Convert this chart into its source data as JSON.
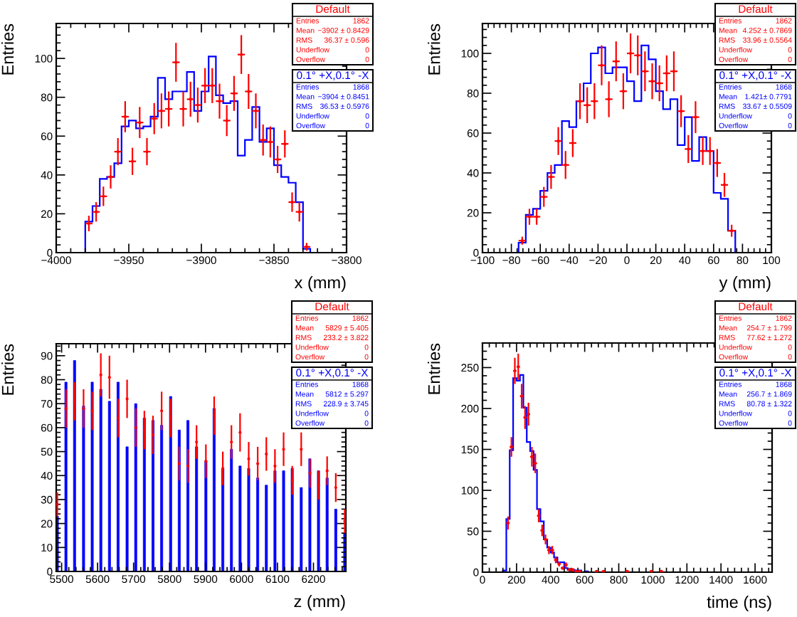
{
  "chart_data": [
    {
      "type": "histogram",
      "xlabel": "x (mm)",
      "ylabel": "Entries",
      "legend": "top right",
      "bins": [
        -4000,
        -3995,
        -3990,
        -3985,
        -3980,
        -3975,
        -3970,
        -3965,
        -3960,
        -3955,
        -3950,
        -3945,
        -3940,
        -3935,
        -3930,
        -3925,
        -3920,
        -3915,
        -3910,
        -3905,
        -3900,
        -3895,
        -3890,
        -3885,
        -3880,
        -3875,
        -3870,
        -3865,
        -3860,
        -3855,
        -3850,
        -3845,
        -3840,
        -3835,
        -3830,
        -3825,
        -3820,
        -3815,
        -3810,
        -3805,
        -3800
      ],
      "xlim": [
        -4000,
        -3800
      ],
      "ylim": [
        0,
        118
      ],
      "xticks": [
        {
          "value": -4000,
          "label": "−4000"
        },
        {
          "value": -3950,
          "label": "−3950"
        },
        {
          "value": -3900,
          "label": "−3900"
        },
        {
          "value": -3850,
          "label": "−3850"
        },
        {
          "value": -3800,
          "label": "−3800"
        }
      ],
      "yticks": [
        0,
        20,
        40,
        60,
        80,
        100
      ],
      "series": [
        {
          "name": "Default",
          "color": "#ff0000",
          "type": "scatter",
          "x": [
            -3977.5,
            -3972.5,
            -3967.5,
            -3962.5,
            -3957.5,
            -3952.5,
            -3947.5,
            -3942.5,
            -3937.5,
            -3932.5,
            -3927.5,
            -3922.5,
            -3917.5,
            -3912.5,
            -3907.5,
            -3902.5,
            -3897.5,
            -3892.5,
            -3887.5,
            -3882.5,
            -3877.5,
            -3872.5,
            -3867.5,
            -3862.5,
            -3857.5,
            -3852.5,
            -3847.5,
            -3842.5,
            -3837.5,
            -3832.5,
            -3827.5
          ],
          "values": [
            15,
            21,
            29,
            39,
            52,
            70,
            47,
            67,
            52,
            69,
            73,
            74,
            98,
            74,
            79,
            76,
            86,
            86,
            78,
            68,
            82,
            102,
            83,
            73,
            58,
            57,
            48,
            56,
            26,
            21,
            3
          ],
          "errors": [
            4,
            5,
            5,
            6,
            7,
            8,
            7,
            8,
            7,
            8,
            9,
            9,
            10,
            9,
            9,
            9,
            9,
            9,
            9,
            8,
            9,
            10,
            9,
            9,
            8,
            8,
            7,
            7,
            5,
            5,
            2
          ],
          "xerrors": [
            2.5,
            2.5,
            2.5,
            2.5,
            2.5,
            2.5,
            2.5,
            2.5,
            2.5,
            2.5,
            2.5,
            2.5,
            2.5,
            2.5,
            2.5,
            2.5,
            2.5,
            2.5,
            2.5,
            2.5,
            2.5,
            2.5,
            2.5,
            2.5,
            2.5,
            2.5,
            2.5,
            2.5,
            2.5,
            2.5,
            2.5
          ]
        },
        {
          "name": "0.1° +X,0.1° -X",
          "color": "#0000ff",
          "values": [
            0,
            0,
            0,
            0,
            16,
            24,
            38,
            39,
            46,
            65,
            68,
            64,
            65,
            70,
            90,
            79,
            83,
            83,
            93,
            73,
            83,
            101,
            81,
            77,
            78,
            50,
            58,
            75,
            57,
            64,
            45,
            39,
            36,
            26,
            2,
            0,
            0,
            0,
            0,
            0
          ]
        }
      ],
      "annotations": [
        "Entries 1862",
        "Mean −3902 ± 0.8429",
        "RMS 36.37 ± 0.596",
        "Underflow 0",
        "Overflow 0",
        "Entries 1868",
        "Mean −3904 ± 0.8451",
        "RMS 36.53 ± 0.5976",
        "Underflow 0",
        "Overflow 0"
      ]
    },
    {
      "type": "histogram",
      "xlabel": "y (mm)",
      "ylabel": "Entries",
      "legend": "top right",
      "bins": [
        -100,
        -95,
        -90,
        -85,
        -80,
        -75,
        -70,
        -65,
        -60,
        -55,
        -50,
        -45,
        -40,
        -35,
        -30,
        -25,
        -20,
        -15,
        -10,
        -5,
        0,
        5,
        10,
        15,
        20,
        25,
        30,
        35,
        40,
        45,
        50,
        55,
        60,
        65,
        70,
        75,
        80,
        85,
        90,
        95,
        100
      ],
      "xlim": [
        -100,
        100
      ],
      "ylim": [
        0,
        115
      ],
      "xticks": [
        {
          "value": -100,
          "label": "−100"
        },
        {
          "value": -80,
          "label": "−80"
        },
        {
          "value": -60,
          "label": "−60"
        },
        {
          "value": -40,
          "label": "−40"
        },
        {
          "value": -20,
          "label": "−20"
        },
        0,
        20,
        40,
        60,
        80,
        100
      ],
      "yticks": [
        0,
        20,
        40,
        60,
        80,
        100
      ],
      "series": [
        {
          "name": "Default",
          "color": "#ff0000",
          "type": "scatter",
          "x": [
            -72.5,
            -67.5,
            -62.5,
            -57.5,
            -52.5,
            -47.5,
            -42.5,
            -37.5,
            -32.5,
            -27.5,
            -22.5,
            -17.5,
            -12.5,
            -7.5,
            -2.5,
            2.5,
            7.5,
            12.5,
            17.5,
            22.5,
            27.5,
            32.5,
            37.5,
            42.5,
            47.5,
            52.5,
            57.5,
            62.5,
            67.5,
            72.5
          ],
          "values": [
            6,
            18,
            18,
            28,
            38,
            56,
            44,
            55,
            76,
            74,
            76,
            94,
            77,
            96,
            81,
            100,
            99,
            91,
            86,
            85,
            90,
            91,
            71,
            52,
            68,
            51,
            51,
            45,
            34,
            11
          ],
          "errors": [
            2,
            4,
            4,
            5,
            6,
            7,
            7,
            7,
            9,
            9,
            9,
            10,
            9,
            10,
            9,
            10,
            10,
            10,
            9,
            9,
            9,
            10,
            8,
            7,
            8,
            7,
            7,
            7,
            6,
            3
          ],
          "xerrors": [
            2.5,
            2.5,
            2.5,
            2.5,
            2.5,
            2.5,
            2.5,
            2.5,
            2.5,
            2.5,
            2.5,
            2.5,
            2.5,
            2.5,
            2.5,
            2.5,
            2.5,
            2.5,
            2.5,
            2.5,
            2.5,
            2.5,
            2.5,
            2.5,
            2.5,
            2.5,
            2.5,
            2.5,
            2.5,
            2.5
          ]
        },
        {
          "name": "0.1° +X,0.1° -X",
          "color": "#0000ff",
          "values": [
            0,
            0,
            0,
            0,
            0,
            5,
            19,
            22,
            31,
            40,
            44,
            66,
            63,
            76,
            85,
            100,
            103,
            90,
            93,
            93,
            86,
            76,
            104,
            97,
            81,
            72,
            77,
            54,
            68,
            46,
            58,
            51,
            30,
            27,
            11,
            0,
            0,
            0,
            0,
            0
          ]
        }
      ],
      "annotations": [
        "Entries 1862",
        "Mean 4.252 ± 0.7869",
        "RMS 33.96 ± 0.5564",
        "Underflow 0",
        "Overflow 0",
        "Entries 1868",
        "Mean 1.421± 0.7791",
        "RMS 33.67 ± 0.5509",
        "Underflow 0",
        "Overflow 0"
      ]
    },
    {
      "type": "bar",
      "xlabel": "z (mm)",
      "ylabel": "Entries",
      "legend": "top right",
      "x": [
        5488,
        5512,
        5536,
        5561,
        5585,
        5609,
        5633,
        5657,
        5682,
        5706,
        5730,
        5754,
        5778,
        5803,
        5827,
        5851,
        5875,
        5901,
        5924,
        5948,
        5972,
        5996,
        6020,
        6045,
        6069,
        6093,
        6117,
        6141,
        6166,
        6190,
        6214,
        6238,
        6262,
        6287
      ],
      "xlim": [
        5485,
        6290
      ],
      "ylim": [
        0,
        95
      ],
      "xticks": [
        5500,
        5600,
        5700,
        5800,
        5900,
        6000,
        6100,
        6200
      ],
      "yticks": [
        0,
        10,
        20,
        30,
        40,
        50,
        60,
        70,
        80,
        90
      ],
      "series": [
        {
          "name": "Default",
          "color": "#ff0000",
          "type": "scatter",
          "x": [
            5488,
            5512,
            5536,
            5561,
            5585,
            5609,
            5633,
            5657,
            5682,
            5706,
            5730,
            5754,
            5778,
            5803,
            5827,
            5851,
            5875,
            5901,
            5924,
            5948,
            5972,
            5996,
            6020,
            6045,
            6069,
            6093,
            6117,
            6141,
            6166,
            6190,
            6214,
            6238,
            6262,
            6287
          ],
          "values": [
            28,
            68,
            71,
            68,
            67,
            82,
            81,
            64,
            72,
            60,
            59,
            57,
            67,
            64,
            45,
            44,
            54,
            46,
            65,
            43,
            54,
            58,
            47,
            45,
            49,
            44,
            51,
            38,
            51,
            41,
            36,
            42,
            35,
            21
          ],
          "errors": [
            5,
            8,
            8,
            8,
            8,
            9,
            9,
            8,
            8,
            8,
            8,
            8,
            8,
            8,
            7,
            7,
            7,
            7,
            8,
            7,
            7,
            8,
            7,
            7,
            7,
            7,
            7,
            6,
            7,
            6,
            6,
            6,
            6,
            5
          ]
        },
        {
          "name": "0.1° +X,0.1° -X",
          "color": "#0000ff",
          "values": [
            23,
            79,
            88,
            69,
            79,
            76,
            71,
            79,
            52,
            70,
            64,
            63,
            61,
            73,
            59,
            63,
            52,
            46,
            68,
            43,
            51,
            44,
            43,
            39,
            36,
            42,
            42,
            43,
            35,
            47,
            42,
            39,
            26,
            16
          ]
        }
      ],
      "annotations": [
        "Entries 1862",
        "Mean 5829 ± 5.405",
        "RMS 233.2 ± 3.822",
        "Underflow 0",
        "Overflow 0",
        "Entries 1868",
        "Mean 5812 ± 5.297",
        "RMS 228.9 ± 3.745",
        "Underflow 0",
        "Overflow 0"
      ]
    },
    {
      "type": "histogram",
      "xlabel": "time (ns)",
      "ylabel": "Entries",
      "legend": "top right",
      "bins": [
        0,
        20,
        40,
        60,
        80,
        100,
        120,
        140,
        160,
        180,
        200,
        220,
        240,
        260,
        280,
        300,
        320,
        340,
        360,
        380,
        400,
        420,
        440,
        460,
        480,
        500,
        520,
        540,
        560,
        580,
        600,
        620,
        640,
        660,
        680,
        700,
        720,
        740,
        760,
        780,
        800,
        820,
        840,
        860,
        880,
        900,
        920,
        940,
        960,
        980,
        1000,
        1020,
        1040,
        1060,
        1080,
        1100,
        1120,
        1140,
        1160,
        1180,
        1200,
        1220,
        1240,
        1260,
        1280,
        1300,
        1320,
        1340,
        1360,
        1380,
        1400,
        1420,
        1440,
        1460,
        1480,
        1500,
        1520,
        1540,
        1560,
        1580,
        1600,
        1620,
        1640,
        1660,
        1680,
        1700
      ],
      "xlim": [
        0,
        1700
      ],
      "ylim": [
        0,
        280
      ],
      "xticks": [
        0,
        200,
        400,
        600,
        800,
        1000,
        1200,
        1400,
        1600
      ],
      "yticks": [
        0,
        50,
        100,
        150,
        200,
        250
      ],
      "series": [
        {
          "name": "Default",
          "color": "#ff0000",
          "type": "scatter",
          "x": [
            150,
            170,
            190,
            210,
            230,
            250,
            270,
            290,
            310,
            330,
            350,
            370,
            390,
            410,
            430,
            450,
            470,
            490,
            510,
            530,
            550,
            570,
            670,
            710,
            850,
            990,
            1050
          ],
          "values": [
            60,
            153,
            246,
            251,
            215,
            189,
            193,
            141,
            133,
            69,
            51,
            40,
            27,
            27,
            15,
            10,
            5,
            9,
            3,
            3,
            1,
            1,
            1,
            1,
            1,
            1,
            1
          ],
          "errors": [
            8,
            12,
            16,
            16,
            15,
            14,
            14,
            12,
            12,
            8,
            7,
            6,
            5,
            5,
            4,
            3,
            2,
            3,
            2,
            2,
            null,
            null,
            null,
            null,
            null,
            null,
            null
          ],
          "xerrors": [
            10,
            10,
            10,
            10,
            10,
            10,
            10,
            10,
            10,
            10,
            10,
            10,
            10,
            10,
            10,
            10,
            10,
            10,
            10,
            10,
            10,
            10,
            10,
            10,
            10,
            10,
            10
          ]
        },
        {
          "name": "0.1° +X,0.1° -X",
          "color": "#0000ff",
          "values": [
            0,
            0,
            0,
            0,
            0,
            0,
            2,
            65,
            149,
            237,
            234,
            241,
            201,
            159,
            148,
            125,
            77,
            62,
            40,
            30,
            24,
            18,
            12,
            12,
            5,
            3,
            3,
            2,
            2,
            0,
            1,
            0,
            0,
            0,
            0,
            0,
            0,
            0,
            0,
            0,
            0,
            0,
            0,
            0,
            0,
            0,
            0,
            0,
            0,
            0,
            0,
            0,
            0,
            0,
            0,
            0,
            0,
            0,
            0,
            0,
            0,
            0,
            0,
            0,
            0,
            0,
            0,
            0,
            0,
            0,
            0,
            0,
            0,
            0,
            0,
            0,
            0,
            0,
            0,
            0,
            0,
            0,
            0,
            0,
            0
          ]
        }
      ],
      "annotations": [
        "Entries 1862",
        "Mean 254.7 ± 1.799",
        "RMS 77.62 ± 1.272",
        "Underflow 0",
        "Overflow 0",
        "Entries 1868",
        "Mean 256.7 ± 1.869",
        "RMS 80.78 ± 1.322",
        "Underflow 0",
        "Overflow 0"
      ]
    }
  ]
}
